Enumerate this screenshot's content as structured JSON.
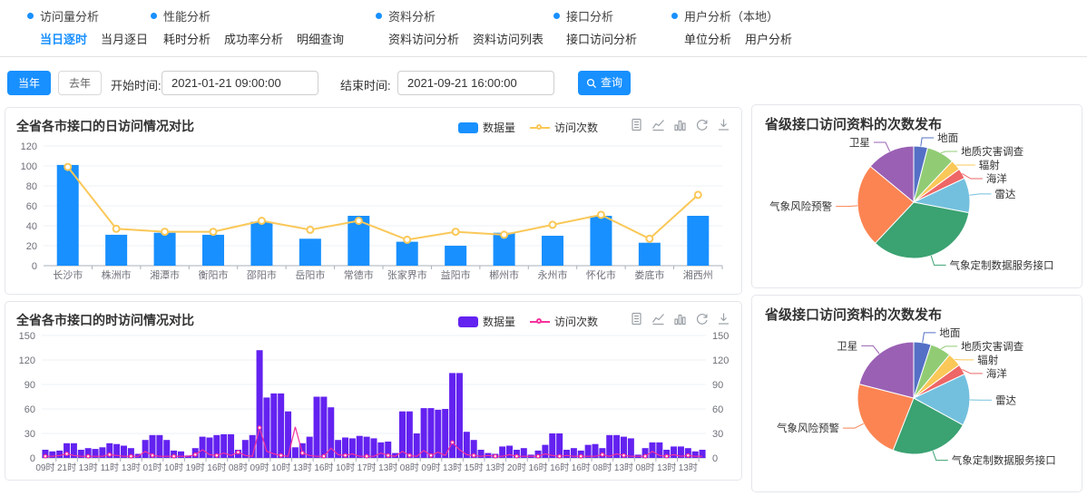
{
  "nav": {
    "sections": [
      {
        "title": "访问量分析",
        "items": [
          {
            "label": "当日逐时",
            "active": true
          },
          {
            "label": "当月逐日",
            "active": false
          }
        ]
      },
      {
        "title": "性能分析",
        "items": [
          {
            "label": "耗时分析",
            "active": false
          },
          {
            "label": "成功率分析",
            "active": false
          },
          {
            "label": "明细查询",
            "active": false
          }
        ]
      },
      {
        "title": "资料分析",
        "items": [
          {
            "label": "资料访问分析",
            "active": false
          },
          {
            "label": "资料访问列表",
            "active": false
          }
        ]
      },
      {
        "title": "接口分析",
        "items": [
          {
            "label": "接口访问分析",
            "active": false
          }
        ]
      },
      {
        "title": "用户分析（本地）",
        "items": [
          {
            "label": "单位分析",
            "active": false
          },
          {
            "label": "用户分析",
            "active": false
          }
        ]
      }
    ]
  },
  "filters": {
    "this_year_label": "当年",
    "last_year_label": "去年",
    "start_label": "开始时间:",
    "start_value": "2021-01-21 09:00:00",
    "end_label": "结束时间:",
    "end_value": "2021-09-21 16:00:00",
    "search_label": "查询"
  },
  "colors": {
    "accent": "#1890ff",
    "panel_border": "#e5e6eb",
    "grid": "#edf0f6",
    "axis": "#aab0ba",
    "tick_text": "#6e7079"
  },
  "chart_data": [
    {
      "type": "bar+line",
      "title": "全省各市接口的日访问情况对比",
      "categories": [
        "长沙市",
        "株洲市",
        "湘潭市",
        "衡阳市",
        "邵阳市",
        "岳阳市",
        "常德市",
        "张家界市",
        "益阳市",
        "郴州市",
        "永州市",
        "怀化市",
        "娄底市",
        "湘西州"
      ],
      "series": [
        {
          "name": "数据量",
          "kind": "bar",
          "color": "#1890ff",
          "values": [
            101,
            31,
            33,
            31,
            44,
            27,
            50,
            24,
            20,
            33,
            30,
            50,
            23,
            50
          ]
        },
        {
          "name": "访问次数",
          "kind": "line",
          "color": "#fac858",
          "values": [
            99,
            37,
            34,
            34,
            45,
            36,
            45,
            26,
            34,
            31,
            41,
            51,
            27,
            71
          ]
        }
      ],
      "ylim": [
        0,
        120
      ],
      "ytick_step": 20,
      "grid": true,
      "legend_position": "top-right",
      "dual_axis": false
    },
    {
      "type": "bar+line",
      "title": "全省各市接口的时访问情况对比",
      "x_labels": [
        "09时",
        "21时",
        "13时",
        "11时",
        "13时",
        "01时",
        "10时",
        "19时",
        "16时",
        "08时",
        "09时",
        "10时",
        "13时",
        "16时",
        "10时",
        "17时",
        "13时",
        "08时",
        "09时",
        "13时",
        "15时",
        "13时",
        "20时",
        "16时",
        "16时",
        "16时",
        "08时",
        "13时",
        "08时",
        "13时",
        "13时"
      ],
      "label_interval": 3,
      "bar_count": 93,
      "series": [
        {
          "name": "数据量",
          "kind": "bar",
          "color": "#6322f0",
          "values": [
            10,
            8,
            9,
            18,
            18,
            10,
            12,
            11,
            13,
            18,
            17,
            15,
            12,
            5,
            22,
            28,
            28,
            22,
            9,
            8,
            3,
            12,
            26,
            25,
            28,
            29,
            29,
            10,
            22,
            28,
            132,
            74,
            79,
            79,
            57,
            13,
            18,
            26,
            75,
            75,
            62,
            22,
            25,
            24,
            27,
            26,
            24,
            19,
            20,
            6,
            57,
            57,
            30,
            61,
            61,
            59,
            60,
            104,
            104,
            32,
            22,
            10,
            6,
            5,
            14,
            15,
            10,
            12,
            4,
            9,
            16,
            30,
            30,
            10,
            12,
            9,
            16,
            17,
            12,
            28,
            28,
            26,
            24,
            4,
            12,
            19,
            19,
            10,
            14,
            14,
            12,
            8,
            10
          ]
        },
        {
          "name": "访问次数",
          "kind": "line",
          "color": "#f5319d",
          "values": [
            2,
            2,
            3,
            5,
            3,
            2,
            2,
            2,
            2,
            4,
            3,
            2,
            2,
            2,
            8,
            3,
            2,
            2,
            2,
            2,
            2,
            4,
            10,
            4,
            3,
            6,
            3,
            7,
            3,
            2,
            37,
            8,
            5,
            3,
            2,
            38,
            6,
            3,
            2,
            2,
            12,
            4,
            3,
            5,
            2,
            2,
            2,
            6,
            3,
            2,
            8,
            3,
            2,
            9,
            3,
            7,
            3,
            19,
            10,
            4,
            3,
            2,
            3,
            2,
            2,
            4,
            2,
            2,
            2,
            2,
            5,
            3,
            2,
            3,
            2,
            2,
            2,
            2,
            4,
            2,
            5,
            3,
            2,
            2,
            2,
            8,
            3,
            2,
            4,
            2,
            3,
            2,
            2
          ]
        }
      ],
      "ylim": [
        0,
        150
      ],
      "ytick_step": 30,
      "grid": true,
      "legend_position": "top-right",
      "dual_axis": true
    },
    {
      "type": "pie",
      "title": "省级接口访问资料的次数发布",
      "slices": [
        {
          "name": "地面",
          "value": 4,
          "color": "#5470c6"
        },
        {
          "name": "地质灾害调查",
          "value": 8,
          "color": "#91cc75"
        },
        {
          "name": "辐射",
          "value": 3,
          "color": "#fac858"
        },
        {
          "name": "海洋",
          "value": 3,
          "color": "#ee6666"
        },
        {
          "name": "雷达",
          "value": 10,
          "color": "#73c0de"
        },
        {
          "name": "气象定制数据服务接口",
          "value": 34,
          "color": "#3ba272"
        },
        {
          "name": "气象风险预警",
          "value": 24,
          "color": "#fc8452"
        },
        {
          "name": "卫星",
          "value": 14,
          "color": "#9a60b4"
        }
      ],
      "legend_position": "labels-with-leader-lines"
    },
    {
      "type": "pie",
      "title": "省级接口访问资料的次数发布",
      "slices": [
        {
          "name": "地面",
          "value": 5,
          "color": "#5470c6"
        },
        {
          "name": "地质灾害调查",
          "value": 6,
          "color": "#91cc75"
        },
        {
          "name": "辐射",
          "value": 4,
          "color": "#fac858"
        },
        {
          "name": "海洋",
          "value": 3,
          "color": "#ee6666"
        },
        {
          "name": "雷达",
          "value": 15,
          "color": "#73c0de"
        },
        {
          "name": "气象定制数据服务接口",
          "value": 23,
          "color": "#3ba272"
        },
        {
          "name": "气象风险预警",
          "value": 23,
          "color": "#fc8452"
        },
        {
          "name": "卫星",
          "value": 21,
          "color": "#9a60b4"
        }
      ],
      "legend_position": "labels-with-leader-lines"
    }
  ]
}
